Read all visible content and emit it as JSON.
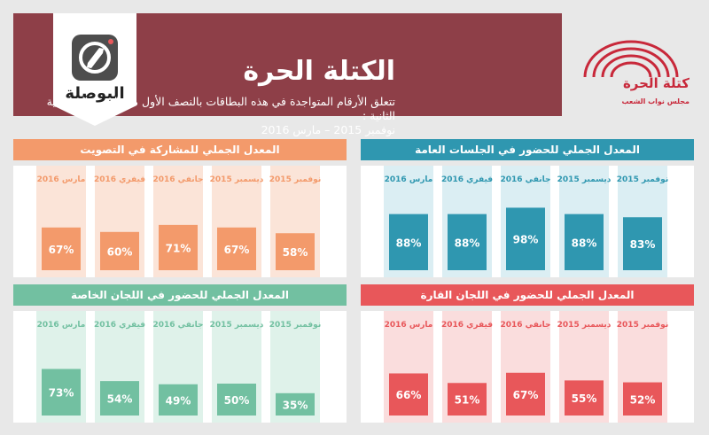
{
  "header": {
    "brand": "البوصلة",
    "title": "الكتلة الحرة",
    "subtitle_line1": "تتعلق الأرقام المتواجدة في هذه البطاقات بالنصف الأول من الدورة البرلمانية الثانية :",
    "subtitle_line2": "نوفمبر 2015 – مارس 2016",
    "parliament_name": "كتلة الحرة",
    "parliament_sub": "مجلس نواب الشعب"
  },
  "colors": {
    "header_bg": "#8e3f48",
    "voting": "#f39a6b",
    "voting_light": "#fbe4d8",
    "attendance_plenary": "#2f97b0",
    "attendance_plenary_light": "#dbeef3",
    "special_committees": "#72c0a1",
    "special_committees_light": "#dff2ea",
    "permanent_committees": "#e8575a",
    "permanent_committees_light": "#fadddd"
  },
  "chart_data": [
    {
      "type": "bar",
      "title": "المعدل الجملي للمشاركة في التصويت",
      "categories": [
        "نوفمبر 2015",
        "ديسمبر 2015",
        "جانفي 2016",
        "فيفري 2016",
        "مارس 2016"
      ],
      "values": [
        58,
        67,
        71,
        60,
        67
      ],
      "value_labels": [
        "58%",
        "67%",
        "71%",
        "60%",
        "67%"
      ],
      "ylim": [
        0,
        100
      ]
    },
    {
      "type": "bar",
      "title": "المعدل الجملي للحضور في الجلسات العامة",
      "categories": [
        "نوفمبر 2015",
        "ديسمبر 2015",
        "جانفي 2016",
        "فيفري 2016",
        "مارس 2016"
      ],
      "values": [
        83,
        88,
        98,
        88,
        88
      ],
      "value_labels": [
        "83%",
        "88%",
        "98%",
        "88%",
        "88%"
      ],
      "ylim": [
        0,
        100
      ]
    },
    {
      "type": "bar",
      "title": "المعدل الجملي للحضور في اللجان الخاصة",
      "categories": [
        "نوفمبر 2015",
        "ديسمبر 2015",
        "جانفي 2016",
        "فيفري 2016",
        "مارس 2016"
      ],
      "values": [
        35,
        50,
        49,
        54,
        73
      ],
      "value_labels": [
        "35%",
        "50%",
        "49%",
        "54%",
        "73%"
      ],
      "ylim": [
        0,
        100
      ]
    },
    {
      "type": "bar",
      "title": "المعدل الجملي للحضور في اللجان القارة",
      "categories": [
        "نوفمبر 2015",
        "ديسمبر 2015",
        "جانفي 2016",
        "فيفري 2016",
        "مارس 2016"
      ],
      "values": [
        52,
        55,
        67,
        51,
        66
      ],
      "value_labels": [
        "52%",
        "55%",
        "67%",
        "51%",
        "66%"
      ],
      "ylim": [
        0,
        100
      ]
    }
  ]
}
